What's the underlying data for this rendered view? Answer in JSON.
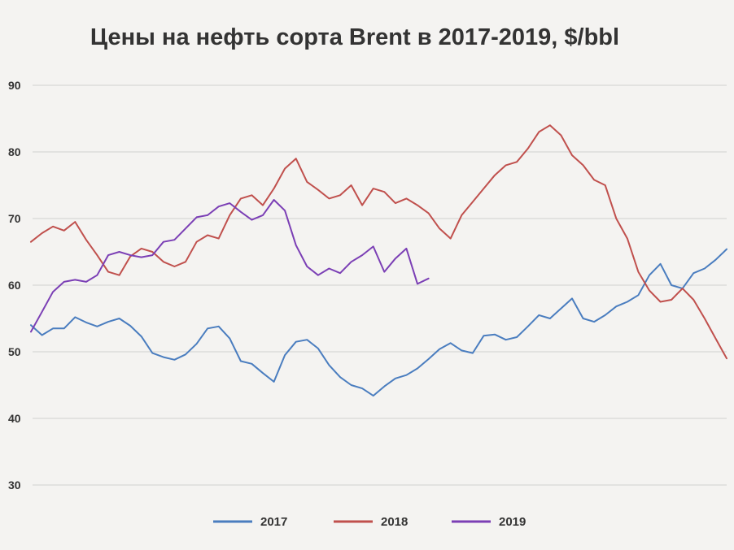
{
  "chart_data": {
    "type": "line",
    "title": "Цены на нефть сорта Brent в 2017-2019, $/bbl",
    "xlabel": "",
    "ylabel": "",
    "ylim": [
      30,
      90
    ],
    "yticks": [
      90,
      80,
      70,
      60,
      50,
      40,
      30
    ],
    "ytick_labels": [
      "90",
      "80",
      "70",
      "60",
      "50",
      "40",
      "30"
    ],
    "grid": true,
    "legend_position": "bottom",
    "x_unit": "trading day index (0 = first trading day of year)",
    "series": [
      {
        "name": "2017",
        "color": "#4a7dbf",
        "x": [
          0,
          4,
          8,
          12,
          16,
          20,
          24,
          28,
          32,
          36,
          40,
          44,
          48,
          52,
          56,
          60,
          64,
          68,
          72,
          76,
          80,
          84,
          88,
          92,
          96,
          100,
          104,
          108,
          112,
          116,
          120,
          124,
          128,
          132,
          136,
          140,
          144,
          148,
          152,
          156,
          160,
          164,
          168,
          172,
          176,
          180,
          184,
          188,
          192,
          196,
          200,
          204,
          208,
          212,
          216,
          220,
          224,
          228,
          232,
          236,
          240,
          244,
          248,
          252
        ],
        "values": [
          54.0,
          52.5,
          53.5,
          53.5,
          55.2,
          54.4,
          53.8,
          54.5,
          55.0,
          53.9,
          52.3,
          49.8,
          49.2,
          48.8,
          49.6,
          51.2,
          53.5,
          53.8,
          52.0,
          48.6,
          48.2,
          46.8,
          45.5,
          49.5,
          51.5,
          51.8,
          50.5,
          48.0,
          46.2,
          45.0,
          44.5,
          43.4,
          44.8,
          46.0,
          46.5,
          47.5,
          48.9,
          50.4,
          51.3,
          50.2,
          49.8,
          52.4,
          52.6,
          51.8,
          52.2,
          53.8,
          55.5,
          55.0,
          56.5,
          58.0,
          55.0,
          54.5,
          55.5,
          56.8,
          57.5,
          58.5,
          61.5,
          63.2,
          60.0,
          59.5,
          61.8,
          62.5,
          63.8,
          65.4
        ]
      },
      {
        "name": "2018",
        "color": "#c0504d",
        "x": [
          0,
          4,
          8,
          12,
          16,
          20,
          24,
          28,
          32,
          36,
          40,
          44,
          48,
          52,
          56,
          60,
          64,
          68,
          72,
          76,
          80,
          84,
          88,
          92,
          96,
          100,
          104,
          108,
          112,
          116,
          120,
          124,
          128,
          132,
          136,
          140,
          144,
          148,
          152,
          156,
          160,
          164,
          168,
          172,
          176,
          180,
          184,
          188,
          192,
          196,
          200,
          204,
          208,
          212,
          216,
          220,
          224,
          228,
          232,
          236,
          240,
          244,
          248,
          252
        ],
        "values": [
          66.5,
          67.8,
          68.8,
          68.2,
          69.5,
          66.8,
          64.5,
          62.0,
          61.5,
          64.3,
          65.5,
          65.0,
          63.5,
          62.8,
          63.5,
          66.5,
          67.5,
          67.0,
          70.5,
          73.0,
          73.5,
          72.0,
          74.5,
          77.5,
          79.0,
          75.5,
          74.3,
          73.0,
          73.5,
          75.0,
          72.0,
          74.5,
          74.0,
          72.3,
          73.0,
          72.0,
          70.8,
          68.5,
          67.0,
          70.5,
          72.5,
          74.5,
          76.5,
          78.0,
          78.5,
          80.5,
          83.0,
          84.0,
          82.5,
          79.5,
          78.0,
          75.8,
          75.0,
          70.0,
          67.0,
          62.0,
          59.2,
          57.5,
          57.8,
          59.5,
          57.8,
          55.0,
          52.0,
          49.0
        ]
      },
      {
        "name": "2019",
        "color": "#7b3fb5",
        "x": [
          0,
          4,
          8,
          12,
          16,
          20,
          24,
          28,
          32,
          36,
          40,
          44,
          48,
          52,
          56,
          60,
          64,
          68,
          72,
          76,
          80,
          84,
          88,
          92,
          96,
          100,
          104,
          108,
          112,
          116,
          120,
          124,
          128,
          132,
          136,
          140,
          144
        ],
        "values": [
          53.0,
          56.0,
          59.0,
          60.5,
          60.8,
          60.5,
          61.5,
          64.5,
          65.0,
          64.5,
          64.2,
          64.5,
          66.5,
          66.8,
          68.5,
          70.2,
          70.5,
          71.8,
          72.3,
          71.0,
          69.8,
          70.5,
          72.8,
          71.2,
          66.0,
          62.8,
          61.5,
          62.5,
          61.8,
          63.5,
          64.5,
          65.8,
          62.0,
          64.0,
          65.5,
          60.2,
          61.0
        ]
      }
    ]
  }
}
